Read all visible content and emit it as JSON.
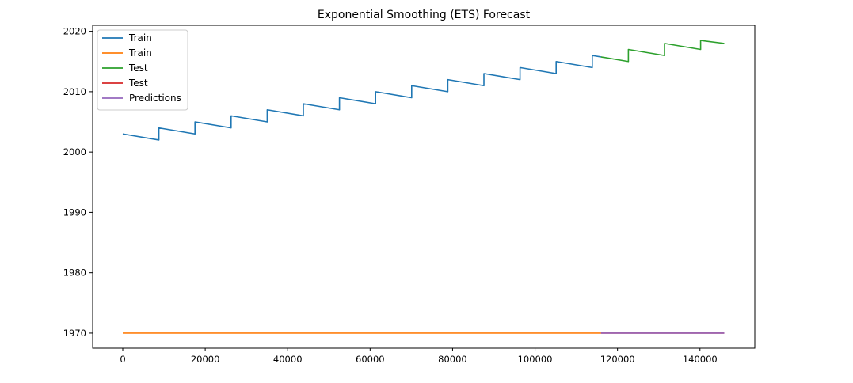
{
  "chart_data": {
    "type": "line",
    "title": "Exponential Smoothing (ETS) Forecast",
    "xlabel": "",
    "ylabel": "",
    "xlim": [
      -7300,
      153300
    ],
    "ylim": [
      1967.5,
      2021
    ],
    "x_ticks": [
      0,
      20000,
      40000,
      60000,
      80000,
      100000,
      120000,
      140000
    ],
    "x_tick_labels": [
      "0",
      "20000",
      "40000",
      "60000",
      "80000",
      "100000",
      "120000",
      "140000"
    ],
    "y_ticks": [
      1970,
      1980,
      1990,
      2000,
      2010,
      2020
    ],
    "y_tick_labels": [
      "1970",
      "1980",
      "1990",
      "2000",
      "2010",
      "2020"
    ],
    "grid": false,
    "legend_position": "top-left",
    "series": [
      {
        "name": "Train",
        "color": "#1f77b4",
        "x": [
          0,
          8760,
          8760,
          17520,
          17520,
          26280,
          26280,
          35040,
          35040,
          43800,
          43800,
          52560,
          52560,
          61320,
          61320,
          70080,
          70080,
          78840,
          78840,
          87600,
          87600,
          96360,
          96360,
          105120,
          105120,
          113880,
          113880,
          116000
        ],
        "y": [
          2003,
          2002,
          2004,
          2003,
          2005,
          2004,
          2006,
          2005,
          2007,
          2006,
          2008,
          2007,
          2009,
          2008,
          2010,
          2009,
          2011,
          2010,
          2012,
          2011,
          2013,
          2012,
          2014,
          2013,
          2015,
          2014,
          2016,
          2015.76
        ]
      },
      {
        "name": "Train",
        "color": "#ff7f0e",
        "x": [
          0,
          116000
        ],
        "y": [
          1970,
          1970
        ]
      },
      {
        "name": "Test",
        "color": "#2ca02c",
        "x": [
          116000,
          122640,
          122640,
          131400,
          131400,
          140160,
          140160,
          145900
        ],
        "y": [
          2015.76,
          2015,
          2017,
          2016,
          2018,
          2017,
          2018.5,
          2018
        ]
      },
      {
        "name": "Test",
        "color": "#d62728",
        "x": [
          116000,
          145900
        ],
        "y": [
          1970,
          1970
        ]
      },
      {
        "name": "Predictions",
        "color": "#9467bd",
        "x": [
          116000,
          145900
        ],
        "y": [
          1970,
          1970
        ]
      }
    ]
  }
}
